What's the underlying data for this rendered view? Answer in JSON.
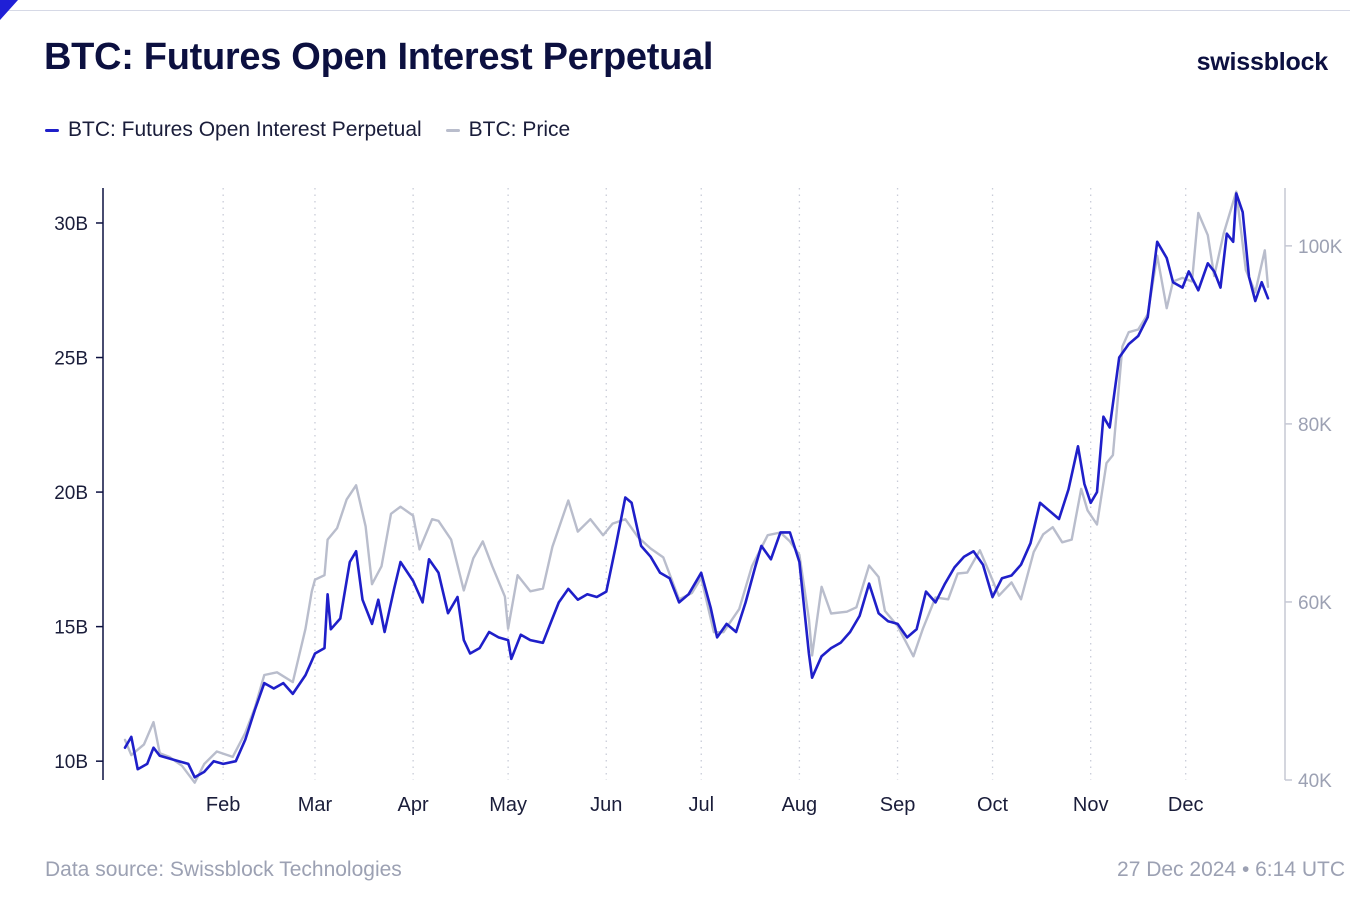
{
  "header": {
    "title": "BTC: Futures Open Interest Perpetual",
    "brand": "swissblock"
  },
  "legend": [
    {
      "label": "BTC: Futures Open Interest Perpetual",
      "color": "#1f1fc9"
    },
    {
      "label": "BTC: Price",
      "color": "#b9bdcc"
    }
  ],
  "footer": {
    "source": "Data source: Swissblock Technologies",
    "date": "27 Dec 2024 • 6:14 UTC"
  },
  "chart_data": {
    "type": "line",
    "title": "BTC: Futures Open Interest Perpetual",
    "x_range": [
      "2024-01-01",
      "2024-12-27"
    ],
    "x_ticks": [
      {
        "label": "Feb",
        "date": "2024-02-01"
      },
      {
        "label": "Mar",
        "date": "2024-03-01"
      },
      {
        "label": "Apr",
        "date": "2024-04-01"
      },
      {
        "label": "May",
        "date": "2024-05-01"
      },
      {
        "label": "Jun",
        "date": "2024-06-01"
      },
      {
        "label": "Jul",
        "date": "2024-07-01"
      },
      {
        "label": "Aug",
        "date": "2024-08-01"
      },
      {
        "label": "Sep",
        "date": "2024-09-01"
      },
      {
        "label": "Oct",
        "date": "2024-10-01"
      },
      {
        "label": "Nov",
        "date": "2024-11-01"
      },
      {
        "label": "Dec",
        "date": "2024-12-01"
      }
    ],
    "y_left": {
      "range": [
        9.3,
        31.3
      ],
      "ticks": [
        {
          "value": 10,
          "label": "10B"
        },
        {
          "value": 15,
          "label": "15B"
        },
        {
          "value": 20,
          "label": "20B"
        },
        {
          "value": 25,
          "label": "25B"
        },
        {
          "value": 30,
          "label": "30B"
        }
      ]
    },
    "y_right": {
      "range": [
        40000,
        106500
      ],
      "ticks": [
        {
          "value": 40000,
          "label": "40K"
        },
        {
          "value": 60000,
          "label": "60K"
        },
        {
          "value": 80000,
          "label": "80K"
        },
        {
          "value": 100000,
          "label": "100K"
        }
      ]
    },
    "grid": "vertical dotted at month ticks",
    "legend_position": "top-left",
    "series": [
      {
        "name": "BTC: Futures Open Interest Perpetual",
        "axis": "left",
        "unit": "B",
        "color": "#1f1fc9",
        "points": [
          [
            "2024-01-01",
            10.5
          ],
          [
            "2024-01-03",
            10.9
          ],
          [
            "2024-01-05",
            9.7
          ],
          [
            "2024-01-08",
            9.9
          ],
          [
            "2024-01-10",
            10.5
          ],
          [
            "2024-01-12",
            10.2
          ],
          [
            "2024-01-15",
            10.1
          ],
          [
            "2024-01-18",
            10.0
          ],
          [
            "2024-01-21",
            9.9
          ],
          [
            "2024-01-23",
            9.4
          ],
          [
            "2024-01-26",
            9.6
          ],
          [
            "2024-01-29",
            10.0
          ],
          [
            "2024-02-01",
            9.9
          ],
          [
            "2024-02-05",
            10.0
          ],
          [
            "2024-02-08",
            10.8
          ],
          [
            "2024-02-11",
            11.9
          ],
          [
            "2024-02-14",
            12.9
          ],
          [
            "2024-02-17",
            12.7
          ],
          [
            "2024-02-20",
            12.9
          ],
          [
            "2024-02-23",
            12.5
          ],
          [
            "2024-02-27",
            13.2
          ],
          [
            "2024-03-01",
            14.0
          ],
          [
            "2024-03-04",
            14.2
          ],
          [
            "2024-03-05",
            16.2
          ],
          [
            "2024-03-06",
            14.9
          ],
          [
            "2024-03-09",
            15.3
          ],
          [
            "2024-03-12",
            17.4
          ],
          [
            "2024-03-14",
            17.8
          ],
          [
            "2024-03-16",
            16.0
          ],
          [
            "2024-03-19",
            15.1
          ],
          [
            "2024-03-21",
            16.0
          ],
          [
            "2024-03-23",
            14.8
          ],
          [
            "2024-03-26",
            16.4
          ],
          [
            "2024-03-28",
            17.4
          ],
          [
            "2024-04-01",
            16.7
          ],
          [
            "2024-04-04",
            15.9
          ],
          [
            "2024-04-06",
            17.5
          ],
          [
            "2024-04-09",
            17.0
          ],
          [
            "2024-04-12",
            15.5
          ],
          [
            "2024-04-15",
            16.1
          ],
          [
            "2024-04-17",
            14.5
          ],
          [
            "2024-04-19",
            14.0
          ],
          [
            "2024-04-22",
            14.2
          ],
          [
            "2024-04-25",
            14.8
          ],
          [
            "2024-04-28",
            14.6
          ],
          [
            "2024-05-01",
            14.5
          ],
          [
            "2024-05-02",
            13.8
          ],
          [
            "2024-05-05",
            14.7
          ],
          [
            "2024-05-08",
            14.5
          ],
          [
            "2024-05-12",
            14.4
          ],
          [
            "2024-05-15",
            15.3
          ],
          [
            "2024-05-17",
            15.9
          ],
          [
            "2024-05-20",
            16.4
          ],
          [
            "2024-05-23",
            16.0
          ],
          [
            "2024-05-26",
            16.2
          ],
          [
            "2024-05-29",
            16.1
          ],
          [
            "2024-06-01",
            16.3
          ],
          [
            "2024-06-04",
            18.0
          ],
          [
            "2024-06-07",
            19.8
          ],
          [
            "2024-06-09",
            19.6
          ],
          [
            "2024-06-12",
            18.0
          ],
          [
            "2024-06-15",
            17.6
          ],
          [
            "2024-06-18",
            17.0
          ],
          [
            "2024-06-21",
            16.8
          ],
          [
            "2024-06-24",
            15.9
          ],
          [
            "2024-06-27",
            16.2
          ],
          [
            "2024-07-01",
            17.0
          ],
          [
            "2024-07-04",
            15.7
          ],
          [
            "2024-07-06",
            14.6
          ],
          [
            "2024-07-09",
            15.1
          ],
          [
            "2024-07-12",
            14.8
          ],
          [
            "2024-07-15",
            15.9
          ],
          [
            "2024-07-18",
            17.2
          ],
          [
            "2024-07-20",
            18.0
          ],
          [
            "2024-07-23",
            17.5
          ],
          [
            "2024-07-26",
            18.5
          ],
          [
            "2024-07-29",
            18.5
          ],
          [
            "2024-08-01",
            17.4
          ],
          [
            "2024-08-04",
            14.0
          ],
          [
            "2024-08-05",
            13.1
          ],
          [
            "2024-08-08",
            13.9
          ],
          [
            "2024-08-11",
            14.2
          ],
          [
            "2024-08-14",
            14.4
          ],
          [
            "2024-08-17",
            14.8
          ],
          [
            "2024-08-20",
            15.4
          ],
          [
            "2024-08-23",
            16.6
          ],
          [
            "2024-08-26",
            15.5
          ],
          [
            "2024-08-29",
            15.2
          ],
          [
            "2024-09-01",
            15.1
          ],
          [
            "2024-09-04",
            14.6
          ],
          [
            "2024-09-07",
            14.9
          ],
          [
            "2024-09-10",
            16.3
          ],
          [
            "2024-09-13",
            15.9
          ],
          [
            "2024-09-16",
            16.6
          ],
          [
            "2024-09-19",
            17.2
          ],
          [
            "2024-09-22",
            17.6
          ],
          [
            "2024-09-25",
            17.8
          ],
          [
            "2024-09-28",
            17.3
          ],
          [
            "2024-10-01",
            16.1
          ],
          [
            "2024-10-04",
            16.8
          ],
          [
            "2024-10-07",
            16.9
          ],
          [
            "2024-10-10",
            17.3
          ],
          [
            "2024-10-13",
            18.1
          ],
          [
            "2024-10-16",
            19.6
          ],
          [
            "2024-10-19",
            19.3
          ],
          [
            "2024-10-22",
            19.0
          ],
          [
            "2024-10-25",
            20.1
          ],
          [
            "2024-10-28",
            21.7
          ],
          [
            "2024-10-30",
            20.3
          ],
          [
            "2024-11-01",
            19.6
          ],
          [
            "2024-11-03",
            20.0
          ],
          [
            "2024-11-05",
            22.8
          ],
          [
            "2024-11-07",
            22.4
          ],
          [
            "2024-11-10",
            25.0
          ],
          [
            "2024-11-13",
            25.5
          ],
          [
            "2024-11-16",
            25.8
          ],
          [
            "2024-11-19",
            26.5
          ],
          [
            "2024-11-22",
            29.3
          ],
          [
            "2024-11-25",
            28.7
          ],
          [
            "2024-11-27",
            27.8
          ],
          [
            "2024-11-30",
            27.6
          ],
          [
            "2024-12-02",
            28.2
          ],
          [
            "2024-12-05",
            27.5
          ],
          [
            "2024-12-08",
            28.5
          ],
          [
            "2024-12-10",
            28.2
          ],
          [
            "2024-12-12",
            27.6
          ],
          [
            "2024-12-14",
            29.6
          ],
          [
            "2024-12-16",
            29.3
          ],
          [
            "2024-12-17",
            31.1
          ],
          [
            "2024-12-19",
            30.4
          ],
          [
            "2024-12-21",
            28.0
          ],
          [
            "2024-12-23",
            27.1
          ],
          [
            "2024-12-25",
            27.8
          ],
          [
            "2024-12-27",
            27.2
          ]
        ]
      },
      {
        "name": "BTC: Price",
        "axis": "right",
        "unit": "USD",
        "color": "#b9bdcc",
        "points": [
          [
            "2024-01-01",
            44500
          ],
          [
            "2024-01-03",
            42800
          ],
          [
            "2024-01-07",
            44000
          ],
          [
            "2024-01-10",
            46500
          ],
          [
            "2024-01-12",
            43000
          ],
          [
            "2024-01-15",
            42600
          ],
          [
            "2024-01-19",
            41600
          ],
          [
            "2024-01-23",
            39700
          ],
          [
            "2024-01-26",
            41800
          ],
          [
            "2024-01-30",
            43200
          ],
          [
            "2024-02-04",
            42600
          ],
          [
            "2024-02-08",
            45300
          ],
          [
            "2024-02-11",
            48100
          ],
          [
            "2024-02-14",
            51800
          ],
          [
            "2024-02-18",
            52100
          ],
          [
            "2024-02-23",
            51000
          ],
          [
            "2024-02-27",
            57000
          ],
          [
            "2024-02-29",
            61200
          ],
          [
            "2024-03-01",
            62500
          ],
          [
            "2024-03-04",
            63000
          ],
          [
            "2024-03-05",
            67000
          ],
          [
            "2024-03-08",
            68300
          ],
          [
            "2024-03-11",
            71500
          ],
          [
            "2024-03-14",
            73100
          ],
          [
            "2024-03-17",
            68500
          ],
          [
            "2024-03-19",
            62000
          ],
          [
            "2024-03-22",
            64000
          ],
          [
            "2024-03-25",
            69900
          ],
          [
            "2024-03-28",
            70700
          ],
          [
            "2024-04-01",
            69700
          ],
          [
            "2024-04-03",
            65900
          ],
          [
            "2024-04-07",
            69300
          ],
          [
            "2024-04-09",
            69100
          ],
          [
            "2024-04-13",
            67000
          ],
          [
            "2024-04-17",
            61300
          ],
          [
            "2024-04-20",
            64900
          ],
          [
            "2024-04-23",
            66800
          ],
          [
            "2024-04-26",
            64000
          ],
          [
            "2024-04-30",
            60600
          ],
          [
            "2024-05-01",
            57000
          ],
          [
            "2024-05-04",
            63000
          ],
          [
            "2024-05-08",
            61200
          ],
          [
            "2024-05-12",
            61500
          ],
          [
            "2024-05-15",
            66200
          ],
          [
            "2024-05-20",
            71400
          ],
          [
            "2024-05-23",
            67900
          ],
          [
            "2024-05-27",
            69300
          ],
          [
            "2024-05-31",
            67500
          ],
          [
            "2024-06-03",
            68800
          ],
          [
            "2024-06-07",
            69300
          ],
          [
            "2024-06-11",
            67300
          ],
          [
            "2024-06-15",
            66000
          ],
          [
            "2024-06-19",
            65000
          ],
          [
            "2024-06-24",
            60300
          ],
          [
            "2024-06-28",
            61000
          ],
          [
            "2024-07-01",
            62700
          ],
          [
            "2024-07-05",
            56600
          ],
          [
            "2024-07-08",
            56600
          ],
          [
            "2024-07-13",
            59200
          ],
          [
            "2024-07-17",
            64000
          ],
          [
            "2024-07-22",
            67500
          ],
          [
            "2024-07-26",
            67800
          ],
          [
            "2024-07-29",
            66800
          ],
          [
            "2024-08-01",
            65300
          ],
          [
            "2024-08-04",
            58100
          ],
          [
            "2024-08-05",
            54000
          ],
          [
            "2024-08-08",
            61700
          ],
          [
            "2024-08-11",
            58700
          ],
          [
            "2024-08-16",
            58900
          ],
          [
            "2024-08-19",
            59400
          ],
          [
            "2024-08-23",
            64100
          ],
          [
            "2024-08-26",
            62800
          ],
          [
            "2024-08-28",
            59000
          ],
          [
            "2024-09-01",
            57300
          ],
          [
            "2024-09-06",
            53900
          ],
          [
            "2024-09-09",
            57000
          ],
          [
            "2024-09-13",
            60500
          ],
          [
            "2024-09-17",
            60300
          ],
          [
            "2024-09-20",
            63200
          ],
          [
            "2024-09-23",
            63300
          ],
          [
            "2024-09-27",
            65800
          ],
          [
            "2024-09-30",
            63300
          ],
          [
            "2024-10-03",
            60700
          ],
          [
            "2024-10-07",
            62200
          ],
          [
            "2024-10-10",
            60300
          ],
          [
            "2024-10-14",
            65600
          ],
          [
            "2024-10-17",
            67600
          ],
          [
            "2024-10-20",
            68400
          ],
          [
            "2024-10-23",
            66700
          ],
          [
            "2024-10-26",
            67000
          ],
          [
            "2024-10-29",
            72700
          ],
          [
            "2024-10-31",
            70300
          ],
          [
            "2024-11-03",
            68700
          ],
          [
            "2024-11-06",
            75600
          ],
          [
            "2024-11-08",
            76500
          ],
          [
            "2024-11-11",
            88700
          ],
          [
            "2024-11-13",
            90300
          ],
          [
            "2024-11-16",
            90600
          ],
          [
            "2024-11-19",
            92300
          ],
          [
            "2024-11-22",
            98900
          ],
          [
            "2024-11-25",
            93000
          ],
          [
            "2024-11-27",
            96000
          ],
          [
            "2024-11-30",
            96400
          ],
          [
            "2024-12-03",
            96000
          ],
          [
            "2024-12-05",
            103700
          ],
          [
            "2024-12-08",
            101200
          ],
          [
            "2024-12-10",
            96600
          ],
          [
            "2024-12-13",
            101400
          ],
          [
            "2024-12-17",
            106100
          ],
          [
            "2024-12-20",
            97300
          ],
          [
            "2024-12-23",
            94800
          ],
          [
            "2024-12-26",
            99500
          ],
          [
            "2024-12-27",
            95400
          ]
        ]
      }
    ]
  }
}
